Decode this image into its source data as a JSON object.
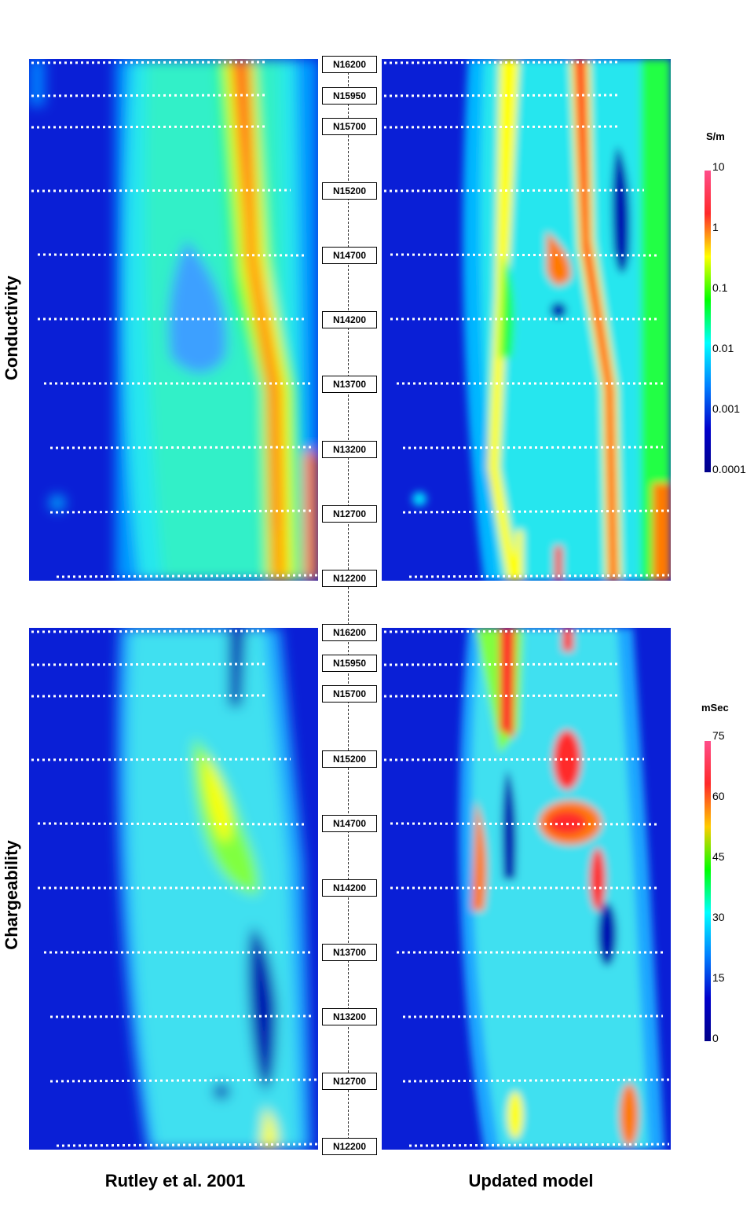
{
  "row_labels": {
    "top": "Conductivity",
    "bottom": "Chargeability"
  },
  "column_labels": {
    "left": "Rutley et al. 2001",
    "right": "Updated model"
  },
  "line_labels": [
    "N16200",
    "N15950",
    "N15700",
    "N15200",
    "N14700",
    "N14200",
    "N13700",
    "N13200",
    "N12700",
    "N12200"
  ],
  "conductivity_colorbar": {
    "unit": "S/m",
    "ticks": [
      "10",
      "1",
      "0.1",
      "0.01",
      "0.001",
      "0.0001"
    ],
    "colors": [
      "#ff4d8a",
      "#ff2a2a",
      "#ffff00",
      "#00ff00",
      "#00ffff",
      "#0080ff",
      "#0000cc",
      "#000088"
    ]
  },
  "chargeability_colorbar": {
    "unit": "mSec",
    "ticks": [
      "75",
      "60",
      "45",
      "30",
      "15",
      "0"
    ],
    "colors": [
      "#ff4d8a",
      "#ff2a2a",
      "#ffcc00",
      "#00ff00",
      "#00ffff",
      "#0080ff",
      "#0000cc",
      "#000088"
    ]
  }
}
